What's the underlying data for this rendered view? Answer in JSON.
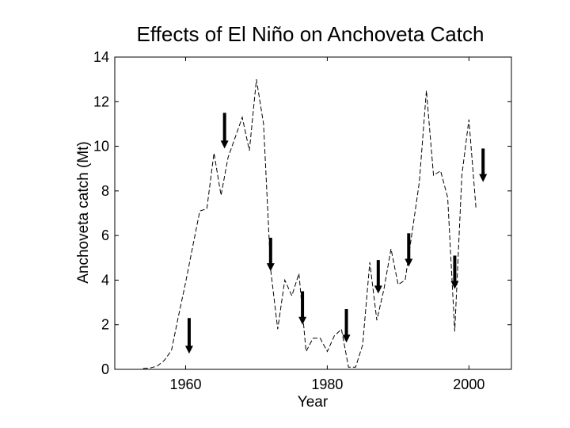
{
  "chart_data": {
    "type": "line",
    "title": "Effects of El Niño on Anchoveta Catch",
    "xlabel": "Year",
    "ylabel": "Anchoveta catch (Mt)",
    "xlim": [
      1950,
      2006
    ],
    "ylim": [
      0,
      14
    ],
    "xticks": [
      1960,
      1980,
      2000
    ],
    "yticks": [
      0,
      2,
      4,
      6,
      8,
      10,
      12,
      14
    ],
    "grid": false,
    "series": [
      {
        "name": "Anchoveta catch",
        "style": "dashed",
        "color": "#000000",
        "x": [
          1954,
          1955,
          1956,
          1957,
          1958,
          1959,
          1960,
          1961,
          1962,
          1963,
          1964,
          1965,
          1966,
          1967,
          1968,
          1969,
          1970,
          1971,
          1972,
          1973,
          1974,
          1975,
          1976,
          1977,
          1978,
          1979,
          1980,
          1981,
          1982,
          1983,
          1984,
          1985,
          1986,
          1987,
          1988,
          1989,
          1990,
          1991,
          1992,
          1993,
          1994,
          1995,
          1996,
          1997,
          1998,
          1999,
          2000,
          2001
        ],
        "y": [
          0.04,
          0.06,
          0.15,
          0.4,
          0.85,
          2.4,
          3.9,
          5.5,
          7.1,
          7.2,
          9.7,
          7.8,
          9.5,
          10.4,
          11.3,
          9.8,
          13.0,
          11.0,
          4.5,
          1.8,
          4.0,
          3.3,
          4.3,
          0.8,
          1.4,
          1.4,
          0.8,
          1.5,
          1.8,
          0.1,
          0.1,
          1.1,
          4.8,
          2.2,
          3.6,
          5.4,
          3.8,
          4.0,
          6.2,
          8.4,
          12.5,
          8.7,
          8.9,
          7.7,
          1.7,
          8.7,
          11.2,
          7.2
        ]
      }
    ],
    "annotations": [
      {
        "type": "arrow",
        "meaning": "El Niño event",
        "x": 1960.5,
        "y_start": 2.3,
        "y_end": 0.7
      },
      {
        "type": "arrow",
        "meaning": "El Niño event",
        "x": 1965.5,
        "y_start": 11.5,
        "y_end": 9.9
      },
      {
        "type": "arrow",
        "meaning": "El Niño event",
        "x": 1972.0,
        "y_start": 5.9,
        "y_end": 4.4
      },
      {
        "type": "arrow",
        "meaning": "El Niño event",
        "x": 1976.5,
        "y_start": 3.5,
        "y_end": 2.0
      },
      {
        "type": "arrow",
        "meaning": "El Niño event",
        "x": 1982.7,
        "y_start": 2.7,
        "y_end": 1.2
      },
      {
        "type": "arrow",
        "meaning": "El Niño event",
        "x": 1987.2,
        "y_start": 4.9,
        "y_end": 3.4
      },
      {
        "type": "arrow",
        "meaning": "El Niño event",
        "x": 1991.5,
        "y_start": 6.1,
        "y_end": 4.6
      },
      {
        "type": "arrow",
        "meaning": "El Niño event",
        "x": 1998.0,
        "y_start": 5.1,
        "y_end": 3.6
      },
      {
        "type": "arrow",
        "meaning": "El Niño event",
        "x": 2002.0,
        "y_start": 9.9,
        "y_end": 8.4
      }
    ]
  }
}
